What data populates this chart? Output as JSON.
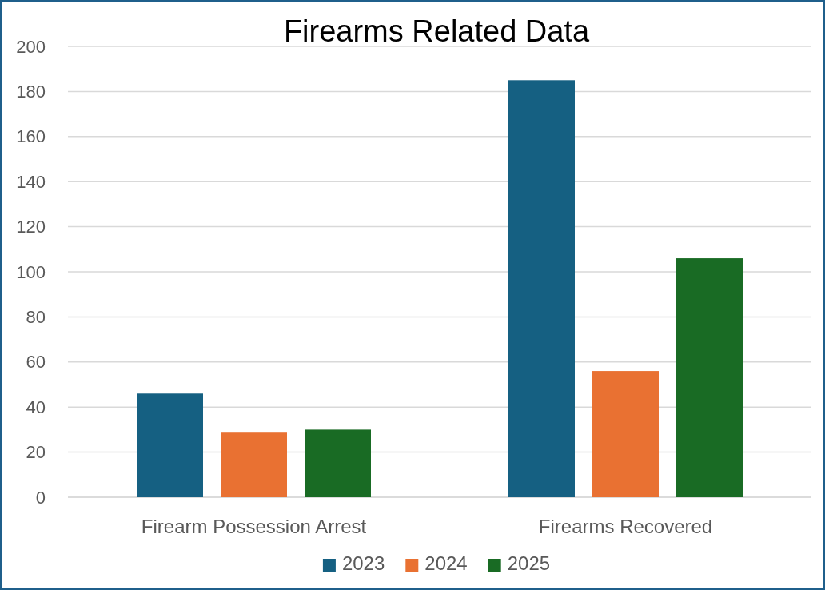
{
  "chart_data": {
    "type": "bar",
    "title": "Firearms Related Data",
    "categories": [
      "Firearm Possession Arrest",
      "Firearms Recovered"
    ],
    "series": [
      {
        "name": "2023",
        "color": "#156082",
        "values": [
          46,
          185
        ]
      },
      {
        "name": "2024",
        "color": "#e97132",
        "values": [
          29,
          56
        ]
      },
      {
        "name": "2025",
        "color": "#196b24",
        "values": [
          30,
          106
        ]
      }
    ],
    "ylim": [
      0,
      200
    ],
    "yticks": [
      0,
      20,
      40,
      60,
      80,
      100,
      120,
      140,
      160,
      180,
      200
    ],
    "grid": "y",
    "legend": "bottom"
  }
}
